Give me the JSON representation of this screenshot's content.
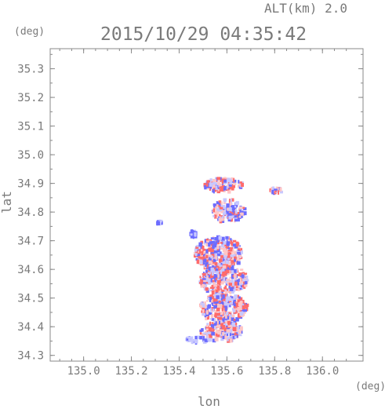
{
  "chart_data": {
    "type": "heatmap",
    "title": "2015/10/29 04:35:42",
    "altitude_label": "ALT(km) 2.0",
    "xlabel": "lon",
    "ylabel": "lat",
    "xunit": "(deg)",
    "yunit": "(deg)",
    "xlim": [
      134.86,
      136.17
    ],
    "ylim": [
      34.28,
      35.37
    ],
    "xticks": [
      135.0,
      135.2,
      135.4,
      135.6,
      135.8,
      136.0
    ],
    "xtick_labels": [
      "135.0",
      "135.2",
      "135.4",
      "135.6",
      "135.8",
      "136.0"
    ],
    "yticks": [
      34.3,
      34.4,
      34.5,
      34.6,
      34.7,
      34.8,
      34.9,
      35.0,
      35.1,
      35.2,
      35.3
    ],
    "ytick_labels": [
      "34.3",
      "34.4",
      "34.5",
      "34.6",
      "34.7",
      "34.8",
      "34.9",
      "35.0",
      "35.1",
      "35.2",
      "35.3"
    ],
    "grid": false,
    "colors": {
      "positive": "#ff6b6b",
      "positive_light": "#ffc6c6",
      "negative": "#6b6bff",
      "negative_light": "#c8c8ff",
      "axis": "#8a8a8a",
      "text": "#7a7a7a"
    },
    "clusters": [
      {
        "lon": 135.58,
        "lat": 34.9,
        "rlon": 0.08,
        "rlat": 0.025,
        "sign": "mixed"
      },
      {
        "lon": 135.6,
        "lat": 34.81,
        "rlon": 0.07,
        "rlat": 0.04,
        "sign": "mixed"
      },
      {
        "lon": 135.8,
        "lat": 34.88,
        "rlon": 0.03,
        "rlat": 0.01,
        "sign": "mixed"
      },
      {
        "lon": 135.56,
        "lat": 34.66,
        "rlon": 0.1,
        "rlat": 0.06,
        "sign": "mixed"
      },
      {
        "lon": 135.58,
        "lat": 34.57,
        "rlon": 0.1,
        "rlat": 0.05,
        "sign": "mixed"
      },
      {
        "lon": 135.58,
        "lat": 34.47,
        "rlon": 0.1,
        "rlat": 0.05,
        "sign": "mixed"
      },
      {
        "lon": 135.57,
        "lat": 34.39,
        "rlon": 0.09,
        "rlat": 0.035,
        "sign": "mixed"
      },
      {
        "lon": 135.47,
        "lat": 34.36,
        "rlon": 0.05,
        "rlat": 0.01,
        "sign": "negative"
      },
      {
        "lon": 135.31,
        "lat": 34.77,
        "rlon": 0.01,
        "rlat": 0.005,
        "sign": "negative"
      },
      {
        "lon": 135.45,
        "lat": 34.73,
        "rlon": 0.015,
        "rlat": 0.01,
        "sign": "negative"
      }
    ]
  }
}
